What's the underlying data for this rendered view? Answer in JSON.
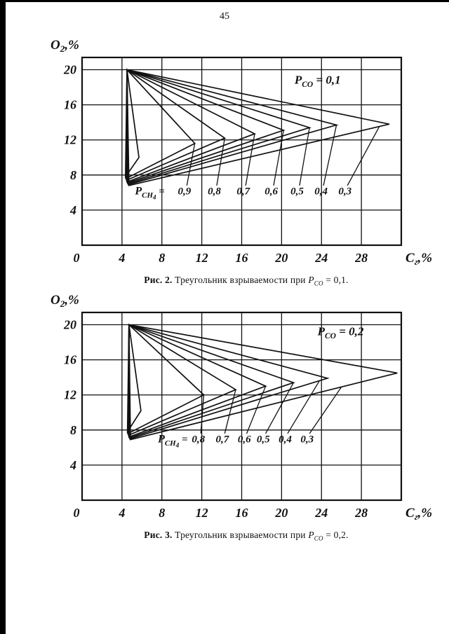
{
  "page": {
    "number": "45",
    "background": "#ffffff",
    "ink": "#111111"
  },
  "chart_data": [
    {
      "type": "line",
      "figure_label": "Рис. 2.",
      "caption_text": " Треугольник взрываемости при ",
      "caption_var": "P",
      "caption_var_sub": "CO",
      "caption_tail": " = 0,1.",
      "x_axis_label": {
        "main": "C",
        "sub": "г",
        "rest": ",%"
      },
      "y_axis_label": {
        "main": "O",
        "sub": "2",
        "rest": ",%"
      },
      "x_ticks": [
        0,
        4,
        8,
        12,
        16,
        20,
        24,
        28
      ],
      "y_ticks": [
        4,
        8,
        12,
        16,
        20
      ],
      "x_max": 32,
      "y_max": 21.4,
      "grid": true,
      "region_label": {
        "main": "P",
        "sub": "CO",
        "rest": " = 0,1",
        "x": 21.3,
        "y": 18.4
      },
      "series_prefix": {
        "main": "P",
        "sub": "CH",
        "sub2": "4",
        "rest": " = ",
        "x": 5.3,
        "y": 5.8
      },
      "label_y": 5.8,
      "triangles": [
        {
          "p_ch4": "",
          "label_x": 0,
          "vertices": [
            [
              4.5,
              20.0
            ],
            [
              4.35,
              7.8
            ],
            [
              5.7,
              10.0
            ]
          ]
        },
        {
          "p_ch4": "0,9",
          "label_x": 9.6,
          "vertices": [
            [
              4.5,
              20.0
            ],
            [
              4.4,
              7.6
            ],
            [
              11.3,
              11.6
            ]
          ]
        },
        {
          "p_ch4": "0,8",
          "label_x": 12.6,
          "vertices": [
            [
              4.5,
              20.0
            ],
            [
              4.45,
              7.4
            ],
            [
              14.3,
              12.2
            ]
          ]
        },
        {
          "p_ch4": "0,7",
          "label_x": 15.5,
          "vertices": [
            [
              4.5,
              20.0
            ],
            [
              4.5,
              7.2
            ],
            [
              17.3,
              12.7
            ]
          ]
        },
        {
          "p_ch4": "0,6",
          "label_x": 18.3,
          "vertices": [
            [
              4.5,
              20.0
            ],
            [
              4.55,
              7.1
            ],
            [
              20.2,
              13.1
            ]
          ]
        },
        {
          "p_ch4": "0,5",
          "label_x": 20.9,
          "vertices": [
            [
              4.5,
              20.0
            ],
            [
              4.6,
              7.0
            ],
            [
              22.8,
              13.4
            ]
          ]
        },
        {
          "p_ch4": "0,4",
          "label_x": 23.3,
          "vertices": [
            [
              4.5,
              20.0
            ],
            [
              4.65,
              6.9
            ],
            [
              25.5,
              13.7
            ]
          ]
        },
        {
          "p_ch4": "0,3",
          "label_x": 25.7,
          "vertices": [
            [
              4.5,
              20.0
            ],
            [
              4.7,
              6.8
            ],
            [
              30.8,
              13.8
            ]
          ]
        }
      ]
    },
    {
      "type": "line",
      "figure_label": "Рис. 3.",
      "caption_text": " Треугольник взрываемости при ",
      "caption_var": "P",
      "caption_var_sub": "CO",
      "caption_tail": " = 0,2.",
      "x_axis_label": {
        "main": "C",
        "sub": "г",
        "rest": ",%"
      },
      "y_axis_label": {
        "main": "O",
        "sub": "2",
        "rest": ",%"
      },
      "x_ticks": [
        0,
        4,
        8,
        12,
        16,
        20,
        24,
        28
      ],
      "y_ticks": [
        4,
        8,
        12,
        16,
        20
      ],
      "x_max": 32,
      "y_max": 21.4,
      "grid": true,
      "region_label": {
        "main": "P",
        "sub": "CO",
        "rest": " = 0,2",
        "x": 23.6,
        "y": 18.8
      },
      "series_prefix": {
        "main": "P",
        "sub": "CH",
        "sub2": "4",
        "rest": " = ",
        "x": 7.6,
        "y": 6.6
      },
      "label_y": 6.6,
      "triangles": [
        {
          "p_ch4": "",
          "label_x": 0,
          "vertices": [
            [
              4.7,
              20.0
            ],
            [
              4.55,
              7.8
            ],
            [
              5.9,
              10.2
            ]
          ]
        },
        {
          "p_ch4": "0,8",
          "label_x": 11.0,
          "vertices": [
            [
              4.7,
              20.0
            ],
            [
              4.6,
              7.6
            ],
            [
              12.2,
              12.0
            ]
          ]
        },
        {
          "p_ch4": "0,7",
          "label_x": 13.4,
          "vertices": [
            [
              4.7,
              20.0
            ],
            [
              4.65,
              7.4
            ],
            [
              15.4,
              12.6
            ]
          ]
        },
        {
          "p_ch4": "0,6",
          "label_x": 15.6,
          "vertices": [
            [
              4.7,
              20.0
            ],
            [
              4.7,
              7.2
            ],
            [
              18.4,
              13.0
            ]
          ]
        },
        {
          "p_ch4": "0,5",
          "label_x": 17.5,
          "vertices": [
            [
              4.7,
              20.0
            ],
            [
              4.75,
              7.1
            ],
            [
              21.2,
              13.4
            ]
          ]
        },
        {
          "p_ch4": "0,4",
          "label_x": 19.7,
          "vertices": [
            [
              4.7,
              20.0
            ],
            [
              4.8,
              7.0
            ],
            [
              24.6,
              13.9
            ]
          ]
        },
        {
          "p_ch4": "0,3",
          "label_x": 21.9,
          "vertices": [
            [
              4.7,
              20.0
            ],
            [
              4.85,
              6.9
            ],
            [
              31.6,
              14.5
            ]
          ]
        }
      ]
    }
  ]
}
